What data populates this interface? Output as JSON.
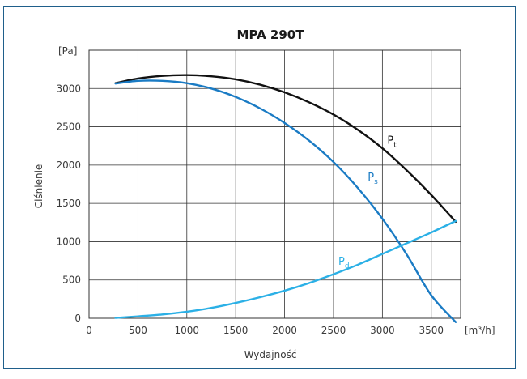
{
  "chart_data": {
    "type": "line",
    "title": "MPA 290T",
    "xlabel": "Wydajność",
    "ylabel": "Ciśnienie",
    "x_unit": "[m³/h]",
    "y_unit": "[Pa]",
    "xlim": [
      0,
      3800
    ],
    "ylim": [
      0,
      3500
    ],
    "x_ticks": [
      0,
      500,
      1000,
      1500,
      2000,
      2500,
      3000,
      3500
    ],
    "y_ticks": [
      0,
      500,
      1000,
      1500,
      2000,
      2500,
      3000
    ],
    "grid": true,
    "series": [
      {
        "name": "P",
        "subscript": "t",
        "color": "#111111",
        "x": [
          270,
          500,
          750,
          1000,
          1250,
          1500,
          1750,
          2000,
          2250,
          2500,
          2750,
          3000,
          3250,
          3500,
          3750
        ],
        "y": [
          3070,
          3130,
          3165,
          3175,
          3160,
          3120,
          3050,
          2950,
          2820,
          2660,
          2460,
          2220,
          1930,
          1610,
          1260
        ],
        "label_at": {
          "x": 3050,
          "y": 2280
        }
      },
      {
        "name": "P",
        "subscript": "s",
        "color": "#1a7bc4",
        "x": [
          270,
          500,
          750,
          1000,
          1250,
          1500,
          1750,
          2000,
          2250,
          2500,
          2750,
          3000,
          3250,
          3500,
          3750
        ],
        "y": [
          3065,
          3100,
          3100,
          3070,
          3000,
          2890,
          2740,
          2550,
          2320,
          2040,
          1700,
          1300,
          830,
          300,
          -50
        ],
        "label_at": {
          "x": 2850,
          "y": 1800
        }
      },
      {
        "name": "P",
        "subscript": "d",
        "color": "#2bb0e6",
        "x": [
          270,
          500,
          750,
          1000,
          1250,
          1500,
          1750,
          2000,
          2250,
          2500,
          2750,
          3000,
          3250,
          3500,
          3750
        ],
        "y": [
          5,
          25,
          50,
          85,
          135,
          200,
          275,
          360,
          460,
          575,
          700,
          840,
          980,
          1120,
          1270
        ],
        "label_at": {
          "x": 2550,
          "y": 700
        }
      }
    ]
  }
}
